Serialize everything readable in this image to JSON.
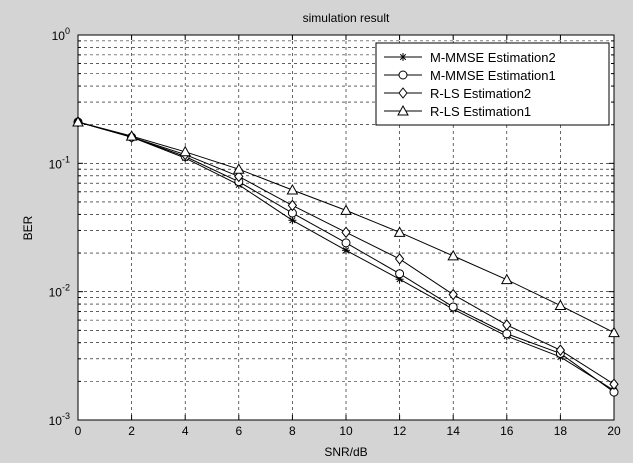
{
  "chart_data": {
    "type": "line",
    "title": "simulation result",
    "xlabel": "SNR/dB",
    "ylabel": "BER",
    "xlim": [
      0,
      20
    ],
    "ylim": [
      0.001,
      1
    ],
    "yscale": "log",
    "grid": true,
    "legend_position": "top-right",
    "x": [
      0,
      2,
      4,
      6,
      8,
      10,
      12,
      14,
      16,
      18,
      20
    ],
    "x_ticks": [
      "0",
      "2",
      "4",
      "6",
      "8",
      "10",
      "12",
      "14",
      "16",
      "18",
      "20"
    ],
    "y_ticks": [
      {
        "base": "10",
        "exp": "0"
      },
      {
        "base": "10",
        "exp": "-1"
      },
      {
        "base": "10",
        "exp": "-2"
      },
      {
        "base": "10",
        "exp": "-3"
      }
    ],
    "series": [
      {
        "name": "M-MMSE Estimation2",
        "marker": "asterisk",
        "values": [
          0.21,
          0.16,
          0.11,
          0.068,
          0.036,
          0.021,
          0.0125,
          0.0073,
          0.0045,
          0.0031,
          0.0017
        ]
      },
      {
        "name": "M-MMSE Estimation1",
        "marker": "circle",
        "values": [
          0.21,
          0.16,
          0.113,
          0.072,
          0.041,
          0.024,
          0.0138,
          0.0076,
          0.0047,
          0.0033,
          0.00165
        ]
      },
      {
        "name": "R-LS Estimation2",
        "marker": "diamond",
        "values": [
          0.21,
          0.16,
          0.117,
          0.079,
          0.047,
          0.029,
          0.018,
          0.0095,
          0.0055,
          0.0035,
          0.0019
        ]
      },
      {
        "name": "R-LS Estimation1",
        "marker": "triangle",
        "values": [
          0.21,
          0.163,
          0.123,
          0.09,
          0.062,
          0.043,
          0.029,
          0.019,
          0.0124,
          0.0078,
          0.0048
        ]
      }
    ]
  }
}
